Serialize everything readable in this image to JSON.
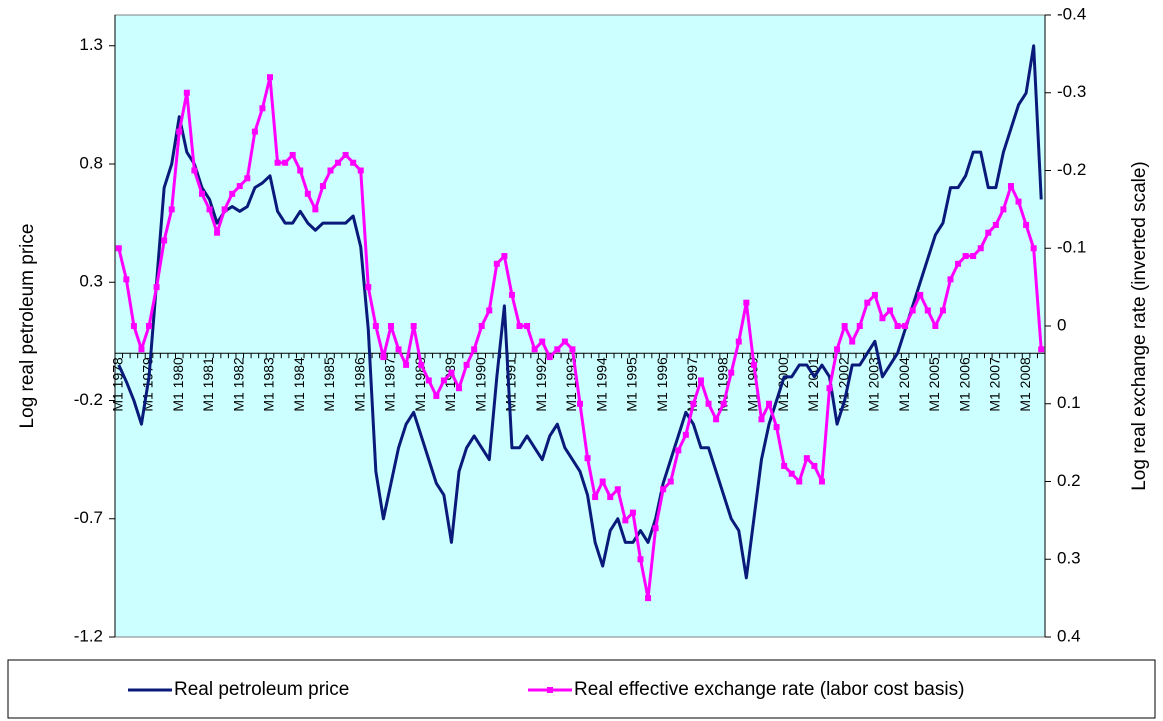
{
  "chart_data": {
    "type": "line",
    "y_label": "Log real petroleum price",
    "y2_label": "Log real exchange rate (inverted scale)",
    "categories": [
      "M1 1978",
      null,
      null,
      null,
      "M1 1979",
      null,
      null,
      null,
      "M1 1980",
      null,
      null,
      null,
      "M1 1981",
      null,
      null,
      null,
      "M1 1982",
      null,
      null,
      null,
      "M1 1983",
      null,
      null,
      null,
      "M1 1984",
      null,
      null,
      null,
      "M1 1985",
      null,
      null,
      null,
      "M1 1986",
      null,
      null,
      null,
      "M1 1987",
      null,
      null,
      null,
      "M1 1988",
      null,
      null,
      null,
      "M1 1989",
      null,
      null,
      null,
      "M1 1990",
      null,
      null,
      null,
      "M1 1991",
      null,
      null,
      null,
      "M1 1992",
      null,
      null,
      null,
      "M1 1993",
      null,
      null,
      null,
      "M1 1994",
      null,
      null,
      null,
      "M1 1995",
      null,
      null,
      null,
      "M1 1996",
      null,
      null,
      null,
      "M1 1997",
      null,
      null,
      null,
      "M1 1998",
      null,
      null,
      null,
      "M1 1999",
      null,
      null,
      null,
      "M1 2000",
      null,
      null,
      null,
      "M1 2001",
      null,
      null,
      null,
      "M1 2002",
      null,
      null,
      null,
      "M1 2003",
      null,
      null,
      null,
      "M1 2004",
      null,
      null,
      null,
      "M1 2005",
      null,
      null,
      null,
      "M1 2006",
      null,
      null,
      null,
      "M1 2007",
      null,
      null,
      null,
      "M1 2008",
      null,
      null
    ],
    "series": [
      {
        "name": "Real petroleum price",
        "color": "#0a1a7a",
        "axis": "y",
        "marker": false,
        "values": [
          -0.05,
          -0.12,
          -0.2,
          -0.3,
          -0.1,
          0.3,
          0.7,
          0.8,
          1.0,
          0.85,
          0.8,
          0.7,
          0.65,
          0.55,
          0.6,
          0.62,
          0.6,
          0.62,
          0.7,
          0.72,
          0.75,
          0.6,
          0.55,
          0.55,
          0.6,
          0.55,
          0.52,
          0.55,
          0.55,
          0.55,
          0.55,
          0.58,
          0.45,
          0.1,
          -0.5,
          -0.7,
          -0.55,
          -0.4,
          -0.3,
          -0.25,
          -0.35,
          -0.45,
          -0.55,
          -0.6,
          -0.8,
          -0.5,
          -0.4,
          -0.35,
          -0.4,
          -0.45,
          -0.1,
          0.2,
          -0.4,
          -0.4,
          -0.35,
          -0.4,
          -0.45,
          -0.35,
          -0.3,
          -0.4,
          -0.45,
          -0.5,
          -0.6,
          -0.8,
          -0.9,
          -0.75,
          -0.7,
          -0.8,
          -0.8,
          -0.75,
          -0.8,
          -0.7,
          -0.55,
          -0.45,
          -0.35,
          -0.25,
          -0.3,
          -0.4,
          -0.4,
          -0.5,
          -0.6,
          -0.7,
          -0.75,
          -0.95,
          -0.7,
          -0.45,
          -0.3,
          -0.2,
          -0.1,
          -0.1,
          -0.05,
          -0.05,
          -0.1,
          -0.05,
          -0.1,
          -0.3,
          -0.2,
          -0.05,
          -0.05,
          0.0,
          0.05,
          -0.1,
          -0.05,
          0.0,
          0.1,
          0.2,
          0.3,
          0.4,
          0.5,
          0.55,
          0.7,
          0.7,
          0.75,
          0.85,
          0.85,
          0.7,
          0.7,
          0.85,
          0.95,
          1.05,
          1.1,
          1.3,
          0.65
        ]
      },
      {
        "name": "Real effective exchange rate (labor cost basis)",
        "color": "#ff00ff",
        "axis": "y2",
        "marker": true,
        "values": [
          -0.1,
          -0.06,
          0.0,
          0.03,
          0.0,
          -0.05,
          -0.11,
          -0.15,
          -0.25,
          -0.3,
          -0.2,
          -0.17,
          -0.15,
          -0.12,
          -0.15,
          -0.17,
          -0.18,
          -0.19,
          -0.25,
          -0.28,
          -0.32,
          -0.21,
          -0.21,
          -0.22,
          -0.2,
          -0.17,
          -0.15,
          -0.18,
          -0.2,
          -0.21,
          -0.22,
          -0.21,
          -0.2,
          -0.05,
          0.0,
          0.04,
          0.0,
          0.03,
          0.05,
          0.0,
          0.05,
          0.07,
          0.09,
          0.07,
          0.06,
          0.08,
          0.05,
          0.03,
          0.0,
          -0.02,
          -0.08,
          -0.09,
          -0.04,
          0.0,
          0.0,
          0.03,
          0.02,
          0.04,
          0.03,
          0.02,
          0.03,
          0.1,
          0.17,
          0.22,
          0.2,
          0.22,
          0.21,
          0.25,
          0.24,
          0.3,
          0.35,
          0.26,
          0.21,
          0.2,
          0.16,
          0.14,
          0.1,
          0.07,
          0.1,
          0.12,
          0.1,
          0.06,
          0.02,
          -0.03,
          0.05,
          0.12,
          0.1,
          0.13,
          0.18,
          0.19,
          0.2,
          0.17,
          0.18,
          0.2,
          0.08,
          0.03,
          0.0,
          0.02,
          0.0,
          -0.03,
          -0.04,
          -0.01,
          -0.02,
          0.0,
          0.0,
          -0.02,
          -0.04,
          -0.02,
          0.0,
          -0.02,
          -0.06,
          -0.08,
          -0.09,
          -0.09,
          -0.1,
          -0.12,
          -0.13,
          -0.15,
          -0.18,
          -0.16,
          -0.13,
          -0.1,
          0.03
        ]
      }
    ],
    "ylim": [
      -1.2,
      1.43
    ],
    "yticks": [
      -1.2,
      -0.7,
      -0.2,
      0.3,
      0.8,
      1.3
    ],
    "y2lim": [
      0.4,
      -0.4
    ],
    "y2ticks": [
      0.4,
      0.3,
      0.2,
      0.1,
      0,
      -0.1,
      -0.2,
      -0.3,
      -0.4
    ],
    "background": "#ccffff",
    "grid": false,
    "legend": "bottom"
  }
}
